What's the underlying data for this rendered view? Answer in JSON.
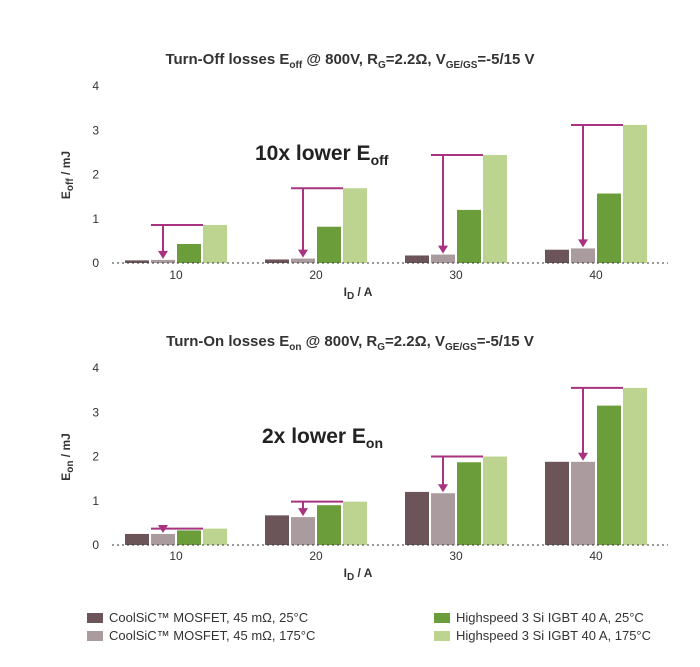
{
  "chart_data": [
    {
      "type": "bar",
      "title": {
        "base": "Turn-Off losses E",
        "sub": "off",
        "mid": " @ 800V, R",
        "sub2": "G",
        "mid2": "=2.2Ω, V",
        "sub3": "GE/GS",
        "end": "=-5/15 V"
      },
      "annotation": {
        "base": "10x lower E",
        "sub": "off"
      },
      "ylabel": {
        "base": "E",
        "sub": "off",
        "end": " / mJ"
      },
      "xlabel": {
        "base": "I",
        "sub": "D",
        "end": " / A"
      },
      "ylim": [
        0,
        4
      ],
      "yticks": [
        "0",
        "1",
        "2",
        "3",
        "4"
      ],
      "categories": [
        "10",
        "20",
        "30",
        "40"
      ],
      "series": [
        {
          "values": [
            0.06,
            0.08,
            0.17,
            0.3
          ]
        },
        {
          "values": [
            0.07,
            0.1,
            0.19,
            0.33
          ]
        },
        {
          "values": [
            0.43,
            0.82,
            1.2,
            1.57
          ]
        },
        {
          "values": [
            0.86,
            1.69,
            2.44,
            3.12
          ]
        }
      ]
    },
    {
      "type": "bar",
      "title": {
        "base": "Turn-On losses E",
        "sub": "on",
        "mid": " @ 800V, R",
        "sub2": "G",
        "mid2": "=2.2Ω, V",
        "sub3": "GE/GS",
        "end": "=-5/15 V"
      },
      "annotation": {
        "base": "2x lower E",
        "sub": "on"
      },
      "ylabel": {
        "base": "E",
        "sub": "on",
        "end": " / mJ"
      },
      "xlabel": {
        "base": "I",
        "sub": "D",
        "end": " / A"
      },
      "ylim": [
        0,
        4
      ],
      "yticks": [
        "0",
        "1",
        "2",
        "3",
        "4"
      ],
      "categories": [
        "10",
        "20",
        "30",
        "40"
      ],
      "series": [
        {
          "values": [
            0.25,
            0.67,
            1.2,
            1.88
          ]
        },
        {
          "values": [
            0.25,
            0.63,
            1.17,
            1.88
          ]
        },
        {
          "values": [
            0.33,
            0.9,
            1.87,
            3.15
          ]
        },
        {
          "values": [
            0.37,
            0.98,
            2.0,
            3.55
          ]
        }
      ]
    }
  ],
  "legend": [
    {
      "label": "CoolSiC™ MOSFET, 45 mΩ, 25°C",
      "color": "#6b5559"
    },
    {
      "label": "CoolSiC™ MOSFET, 45 mΩ, 175°C",
      "color": "#aa9b9e"
    },
    {
      "label": "Highspeed 3 Si IGBT 40 A, 25°C",
      "color": "#6b9e3b"
    },
    {
      "label": "Highspeed 3 Si IGBT 40 A, 175°C",
      "color": "#bcd48f"
    }
  ],
  "arrow_color": "#a8337f"
}
